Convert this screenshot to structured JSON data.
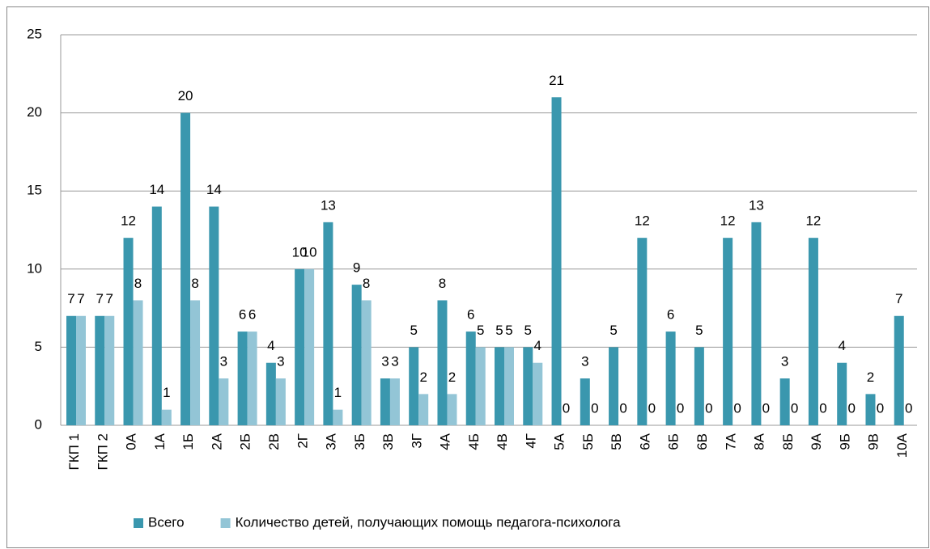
{
  "chart_data": {
    "type": "bar",
    "categories": [
      "ГКП 1",
      "ГКП 2",
      "0А",
      "1А",
      "1Б",
      "2А",
      "2Б",
      "2В",
      "2Г",
      "3А",
      "3Б",
      "3В",
      "3Г",
      "4А",
      "4Б",
      "4В",
      "4Г",
      "5А",
      "5Б",
      "5В",
      "6А",
      "6Б",
      "6В",
      "7А",
      "8А",
      "8Б",
      "9А",
      "9Б",
      "9В",
      "10А"
    ],
    "series": [
      {
        "name": "Всего",
        "color": "#3a97ae",
        "values": [
          7,
          7,
          12,
          14,
          20,
          14,
          6,
          4,
          10,
          13,
          9,
          3,
          5,
          8,
          6,
          5,
          5,
          21,
          3,
          5,
          12,
          6,
          5,
          12,
          13,
          3,
          12,
          4,
          2,
          7
        ]
      },
      {
        "name": "Количество детей, получающих помощь педагога-психолога",
        "color": "#93c5d6",
        "values": [
          7,
          7,
          8,
          1,
          8,
          3,
          6,
          3,
          10,
          1,
          8,
          3,
          2,
          2,
          5,
          5,
          4,
          0,
          0,
          0,
          0,
          0,
          0,
          0,
          0,
          0,
          0,
          0,
          0,
          0
        ]
      }
    ],
    "ylim": [
      0,
      25
    ],
    "yticks": [
      0,
      5,
      10,
      15,
      20,
      25
    ],
    "grid": true,
    "legend": "bottom"
  }
}
